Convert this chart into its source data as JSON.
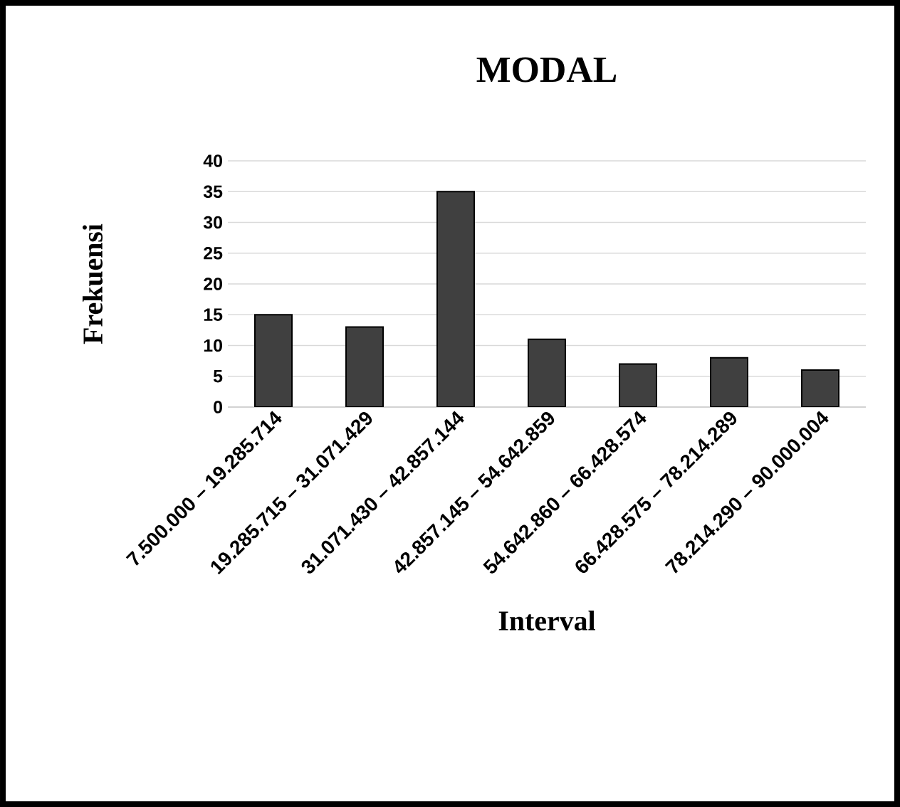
{
  "chart_data": {
    "type": "bar",
    "title": "MODAL",
    "xlabel": "Interval",
    "ylabel": "Frekuensi",
    "categories": [
      "7.500.000 – 19.285.714",
      "19.285.715 – 31.071.429",
      "31.071.430 – 42.857.144",
      "42.857.145 – 54.642.859",
      "54.642.860 – 66.428.574",
      "66.428.575 – 78.214.289",
      "78.214.290 – 90.000.004"
    ],
    "values": [
      15,
      13,
      35,
      11,
      7,
      8,
      6
    ],
    "color": "#404040",
    "ylim": [
      0,
      40
    ],
    "yticks": [
      0,
      5,
      10,
      15,
      20,
      25,
      30,
      35,
      40
    ],
    "grid": "y"
  }
}
